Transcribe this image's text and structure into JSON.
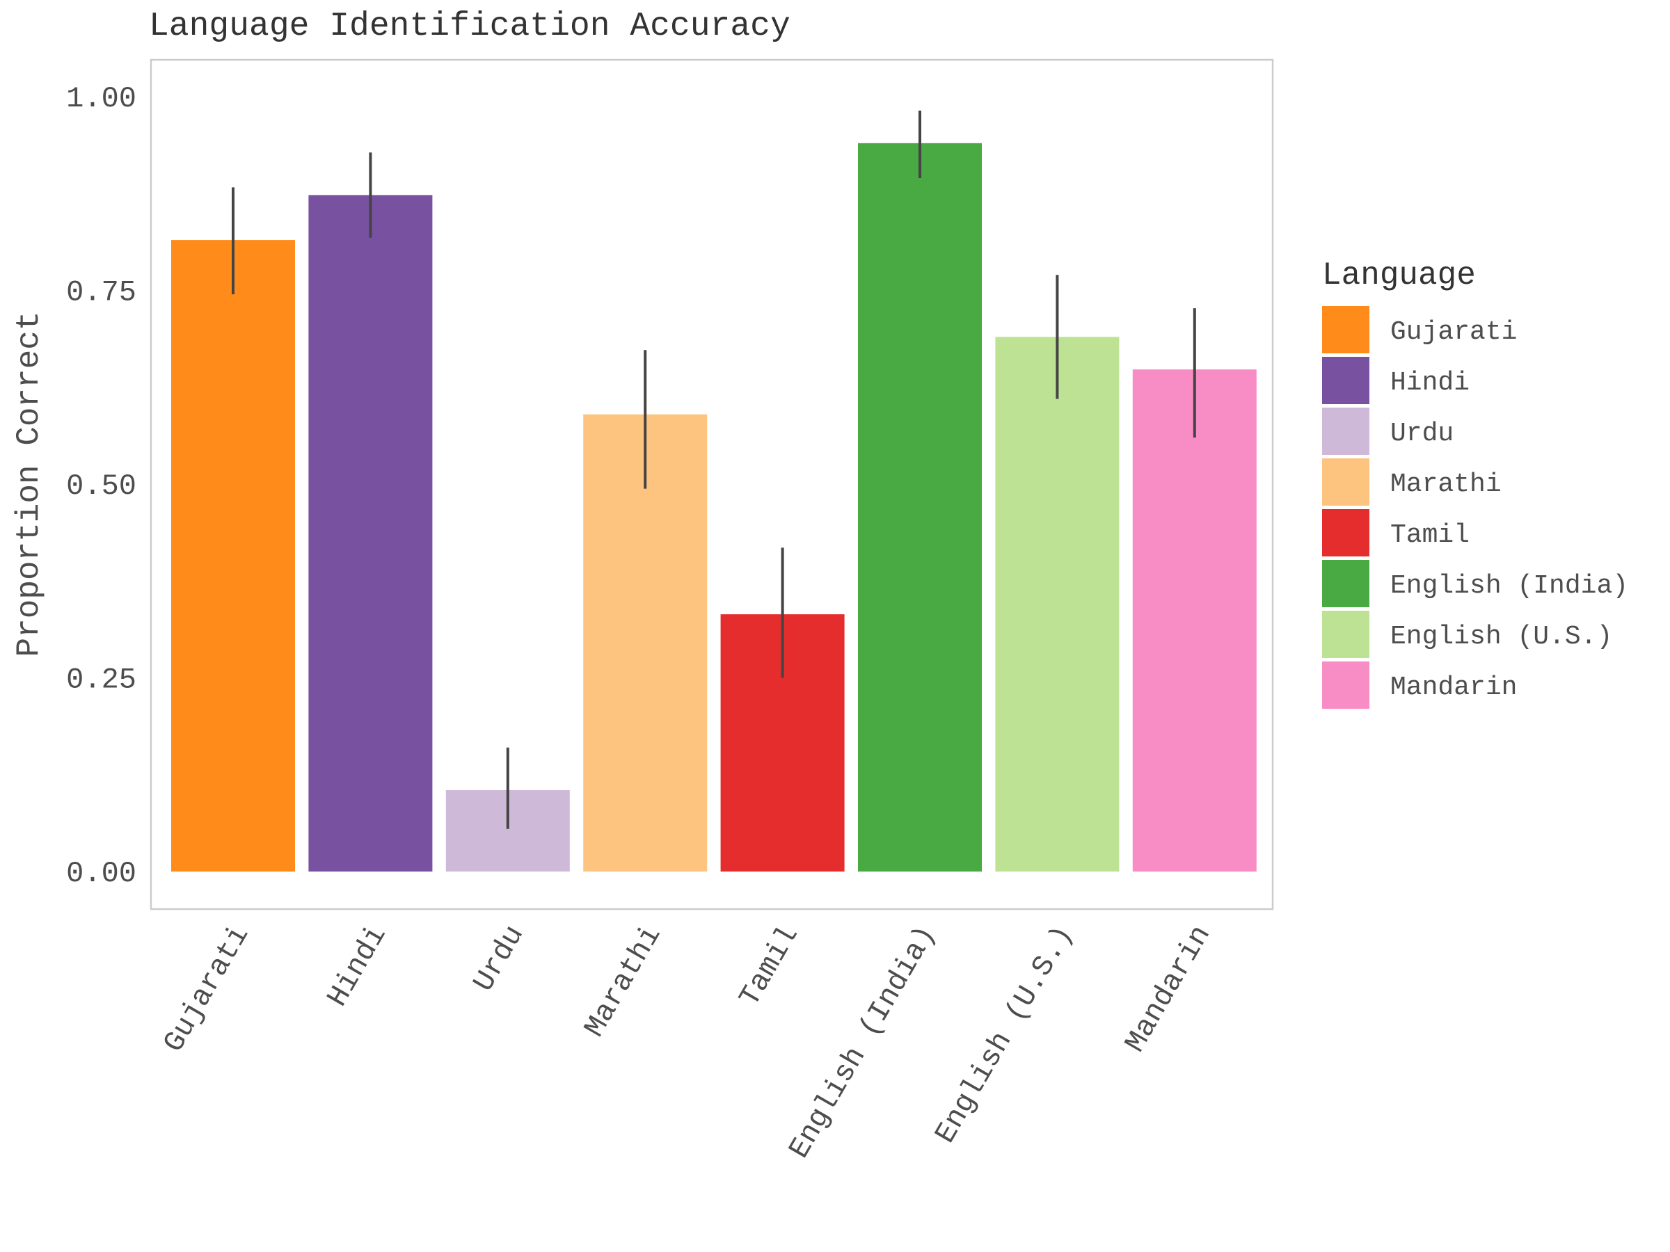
{
  "chart_data": {
    "type": "bar",
    "title": "Language Identification Accuracy",
    "xlabel": "",
    "ylabel": "Proportion Correct",
    "ylim": [
      -0.05,
      1.05
    ],
    "yticks": [
      0.0,
      0.25,
      0.5,
      0.75,
      1.0
    ],
    "ytick_labels": [
      "0.00",
      "0.25",
      "0.50",
      "0.75",
      "1.00"
    ],
    "grid": false,
    "legend": {
      "title": "Language",
      "placement": "right"
    },
    "categories": [
      "Gujarati",
      "Hindi",
      "Urdu",
      "Marathi",
      "Tamil",
      "English (India)",
      "English (U.S.)",
      "Mandarin"
    ],
    "values": [
      0.815,
      0.873,
      0.105,
      0.59,
      0.332,
      0.94,
      0.69,
      0.648
    ],
    "error_low": [
      0.745,
      0.818,
      0.055,
      0.494,
      0.25,
      0.895,
      0.61,
      0.56
    ],
    "error_high": [
      0.883,
      0.928,
      0.16,
      0.673,
      0.418,
      0.982,
      0.77,
      0.727
    ],
    "colors": [
      "#FF8C1A",
      "#7851A1",
      "#CFB9D9",
      "#FDC47F",
      "#E52D2D",
      "#49A942",
      "#BDE294",
      "#F88DC6"
    ]
  }
}
